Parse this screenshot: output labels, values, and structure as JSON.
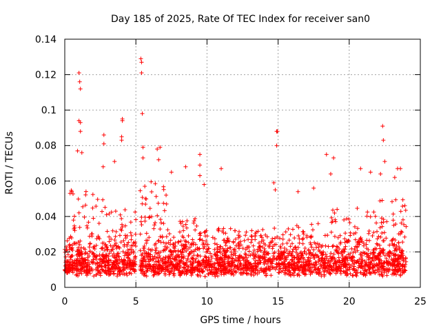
{
  "chart_data": {
    "type": "scatter",
    "title": "Day 185 of 2025, Rate Of TEC Index for receiver san0",
    "xlabel": "GPS time / hours",
    "ylabel": "ROTI / TECUs",
    "xlim": [
      0,
      25
    ],
    "ylim": [
      0,
      0.14
    ],
    "x_ticks": [
      0,
      5,
      10,
      15,
      20,
      25
    ],
    "x_tick_labels": [
      "0",
      "5",
      "10",
      "15",
      "20",
      "25"
    ],
    "y_ticks": [
      0,
      0.02,
      0.04,
      0.06,
      0.08,
      0.1,
      0.12,
      0.14
    ],
    "y_tick_labels": [
      "0",
      "0.02",
      "0.04",
      "0.06",
      "0.08",
      "0.1",
      "0.12",
      "0.14"
    ],
    "grid": true,
    "marker": "plus",
    "marker_color": "#ff0000",
    "data_x_range": [
      0,
      24
    ],
    "gap_x": [
      5.0,
      5.3
    ],
    "outliers": [
      {
        "x": 1.0,
        "y": 0.121
      },
      {
        "x": 1.05,
        "y": 0.116
      },
      {
        "x": 1.1,
        "y": 0.112
      },
      {
        "x": 1.0,
        "y": 0.094
      },
      {
        "x": 1.1,
        "y": 0.093
      },
      {
        "x": 1.1,
        "y": 0.088
      },
      {
        "x": 0.9,
        "y": 0.077
      },
      {
        "x": 1.2,
        "y": 0.076
      },
      {
        "x": 2.75,
        "y": 0.086
      },
      {
        "x": 2.75,
        "y": 0.081
      },
      {
        "x": 2.7,
        "y": 0.068
      },
      {
        "x": 4.05,
        "y": 0.095
      },
      {
        "x": 4.05,
        "y": 0.094
      },
      {
        "x": 4.0,
        "y": 0.085
      },
      {
        "x": 4.0,
        "y": 0.083
      },
      {
        "x": 3.5,
        "y": 0.071
      },
      {
        "x": 5.35,
        "y": 0.129
      },
      {
        "x": 5.4,
        "y": 0.127
      },
      {
        "x": 5.4,
        "y": 0.121
      },
      {
        "x": 5.45,
        "y": 0.098
      },
      {
        "x": 5.5,
        "y": 0.079
      },
      {
        "x": 5.5,
        "y": 0.073
      },
      {
        "x": 6.5,
        "y": 0.078
      },
      {
        "x": 6.7,
        "y": 0.079
      },
      {
        "x": 6.6,
        "y": 0.072
      },
      {
        "x": 7.5,
        "y": 0.065
      },
      {
        "x": 8.5,
        "y": 0.068
      },
      {
        "x": 9.5,
        "y": 0.075
      },
      {
        "x": 9.5,
        "y": 0.069
      },
      {
        "x": 9.5,
        "y": 0.063
      },
      {
        "x": 9.8,
        "y": 0.058
      },
      {
        "x": 11.0,
        "y": 0.067
      },
      {
        "x": 14.9,
        "y": 0.088
      },
      {
        "x": 14.95,
        "y": 0.088
      },
      {
        "x": 14.9,
        "y": 0.08
      },
      {
        "x": 14.7,
        "y": 0.059
      },
      {
        "x": 14.8,
        "y": 0.055
      },
      {
        "x": 16.4,
        "y": 0.054
      },
      {
        "x": 17.5,
        "y": 0.056
      },
      {
        "x": 18.4,
        "y": 0.075
      },
      {
        "x": 18.9,
        "y": 0.073
      },
      {
        "x": 18.7,
        "y": 0.064
      },
      {
        "x": 20.8,
        "y": 0.067
      },
      {
        "x": 21.5,
        "y": 0.065
      },
      {
        "x": 22.35,
        "y": 0.091
      },
      {
        "x": 22.4,
        "y": 0.083
      },
      {
        "x": 22.5,
        "y": 0.071
      },
      {
        "x": 22.2,
        "y": 0.064
      },
      {
        "x": 23.4,
        "y": 0.067
      },
      {
        "x": 23.6,
        "y": 0.067
      },
      {
        "x": 23.2,
        "y": 0.062
      }
    ]
  }
}
